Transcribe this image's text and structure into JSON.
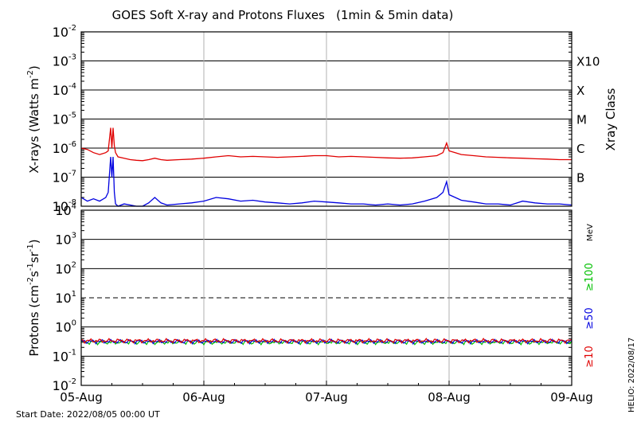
{
  "chart_data": [
    {
      "panel": "xrays",
      "type": "line",
      "title": "GOES Soft X-ray and Protons Fluxes   (1min & 5min data)",
      "ylabel": "X-rays (Watts m",
      "ylabel_exp": "-2",
      "ylabel_close": ")",
      "ylabel_right": "Xray Class",
      "ylim": [
        1e-08,
        0.01
      ],
      "log_scale": true,
      "grid": true,
      "yticks": [
        {
          "base": "10",
          "exp": "-2",
          "value": 0.01
        },
        {
          "base": "10",
          "exp": "-3",
          "value": 0.001
        },
        {
          "base": "10",
          "exp": "-4",
          "value": 0.0001
        },
        {
          "base": "10",
          "exp": "-5",
          "value": 1e-05
        },
        {
          "base": "10",
          "exp": "-6",
          "value": 1e-06
        },
        {
          "base": "10",
          "exp": "-7",
          "value": 1e-07
        },
        {
          "base": "10",
          "exp": "-8",
          "value": 1e-08
        }
      ],
      "class_labels": [
        {
          "label": "X10",
          "value": 0.001
        },
        {
          "label": "X",
          "value": 0.0001
        },
        {
          "label": "M",
          "value": 1e-05
        },
        {
          "label": "C",
          "value": 1e-06
        },
        {
          "label": "B",
          "value": 1e-07
        }
      ],
      "series": [
        {
          "color": "#e00000",
          "x_days": [
            0.0,
            0.05,
            0.1,
            0.15,
            0.2,
            0.22,
            0.24,
            0.25,
            0.26,
            0.27,
            0.28,
            0.3,
            0.35,
            0.4,
            0.45,
            0.5,
            0.55,
            0.6,
            0.65,
            0.7,
            0.8,
            0.9,
            1.0,
            1.1,
            1.2,
            1.3,
            1.4,
            1.5,
            1.6,
            1.7,
            1.8,
            1.9,
            2.0,
            2.1,
            2.2,
            2.3,
            2.4,
            2.5,
            2.6,
            2.7,
            2.8,
            2.9,
            2.95,
            2.98,
            3.0,
            3.05,
            3.1,
            3.2,
            3.3,
            3.4,
            3.5,
            3.6,
            3.7,
            3.8,
            3.9,
            4.0
          ],
          "y": [
            1e-06,
            9e-07,
            7e-07,
            6e-07,
            7e-07,
            8e-07,
            5e-06,
            1e-06,
            5e-06,
            1.2e-06,
            7e-07,
            5e-07,
            4.5e-07,
            4e-07,
            3.8e-07,
            3.7e-07,
            4e-07,
            4.5e-07,
            4e-07,
            3.8e-07,
            4e-07,
            4.2e-07,
            4.5e-07,
            5e-07,
            5.5e-07,
            5e-07,
            5.2e-07,
            5e-07,
            4.8e-07,
            5e-07,
            5.2e-07,
            5.5e-07,
            5.5e-07,
            5e-07,
            5.2e-07,
            5e-07,
            4.8e-07,
            4.6e-07,
            4.5e-07,
            4.6e-07,
            5e-07,
            5.5e-07,
            7e-07,
            1.5e-06,
            8e-07,
            7e-07,
            6e-07,
            5.5e-07,
            5e-07,
            4.8e-07,
            4.6e-07,
            4.5e-07,
            4.3e-07,
            4.2e-07,
            4e-07,
            4e-07
          ]
        },
        {
          "color": "#0000e0",
          "x_days": [
            0.0,
            0.05,
            0.1,
            0.15,
            0.2,
            0.22,
            0.24,
            0.25,
            0.26,
            0.27,
            0.28,
            0.3,
            0.35,
            0.4,
            0.45,
            0.5,
            0.55,
            0.6,
            0.65,
            0.7,
            0.8,
            0.9,
            1.0,
            1.1,
            1.2,
            1.3,
            1.4,
            1.5,
            1.6,
            1.7,
            1.8,
            1.9,
            2.0,
            2.1,
            2.2,
            2.3,
            2.4,
            2.5,
            2.6,
            2.7,
            2.8,
            2.9,
            2.95,
            2.98,
            3.0,
            3.05,
            3.1,
            3.2,
            3.3,
            3.4,
            3.5,
            3.6,
            3.7,
            3.8,
            3.9,
            4.0
          ],
          "y": [
            2e-08,
            1.5e-08,
            1.8e-08,
            1.5e-08,
            2e-08,
            3e-08,
            5e-07,
            1e-07,
            5e-07,
            3e-08,
            1.2e-08,
            1e-08,
            1.2e-08,
            1.1e-08,
            1e-08,
            1e-08,
            1.3e-08,
            2e-08,
            1.3e-08,
            1.1e-08,
            1.2e-08,
            1.3e-08,
            1.5e-08,
            2e-08,
            1.8e-08,
            1.5e-08,
            1.6e-08,
            1.4e-08,
            1.3e-08,
            1.2e-08,
            1.3e-08,
            1.5e-08,
            1.4e-08,
            1.3e-08,
            1.2e-08,
            1.2e-08,
            1.1e-08,
            1.2e-08,
            1.1e-08,
            1.2e-08,
            1.5e-08,
            2e-08,
            3e-08,
            7e-08,
            2.5e-08,
            2e-08,
            1.6e-08,
            1.4e-08,
            1.2e-08,
            1.2e-08,
            1.1e-08,
            1.5e-08,
            1.3e-08,
            1.2e-08,
            1.2e-08,
            1.1e-08
          ]
        }
      ]
    },
    {
      "panel": "protons",
      "type": "line",
      "ylabel": "Protons (cm",
      "ylabel_parts": [
        "-2",
        "s",
        "-1",
        "sr",
        "-1"
      ],
      "ylabel_close": ")",
      "ylim": [
        0.01,
        10000
      ],
      "log_scale": true,
      "grid": true,
      "dashed_threshold": 10,
      "yticks": [
        {
          "base": "10",
          "exp": "4",
          "value": 10000
        },
        {
          "base": "10",
          "exp": "3",
          "value": 1000
        },
        {
          "base": "10",
          "exp": "2",
          "value": 100
        },
        {
          "base": "10",
          "exp": "1",
          "value": 10
        },
        {
          "base": "10",
          "exp": "0",
          "value": 1
        },
        {
          "base": "10",
          "exp": "-1",
          "value": 0.1
        },
        {
          "base": "10",
          "exp": "-2",
          "value": 0.01
        }
      ],
      "right_labels": [
        {
          "label": "MeV",
          "color": "#000000"
        },
        {
          "label": "≥100",
          "color": "#00c000"
        },
        {
          "label": "≥50",
          "color": "#0000e0"
        },
        {
          "label": "≥10",
          "color": "#e00000"
        }
      ],
      "series": [
        {
          "color": "#00c000",
          "level": 0.3
        },
        {
          "color": "#0000e0",
          "level": 0.32
        },
        {
          "color": "#e00000",
          "level": 0.34
        }
      ]
    }
  ],
  "x_axis": {
    "range_days": [
      0,
      4
    ],
    "ticks": [
      {
        "label": "05-Aug",
        "day": 0
      },
      {
        "label": "06-Aug",
        "day": 1
      },
      {
        "label": "07-Aug",
        "day": 2
      },
      {
        "label": "08-Aug",
        "day": 3
      },
      {
        "label": "09-Aug",
        "day": 4
      }
    ]
  },
  "footer": {
    "start_date": "Start Date: 2022/08/05 00:00 UT",
    "helio": "HELIO: 2022/08/17"
  }
}
